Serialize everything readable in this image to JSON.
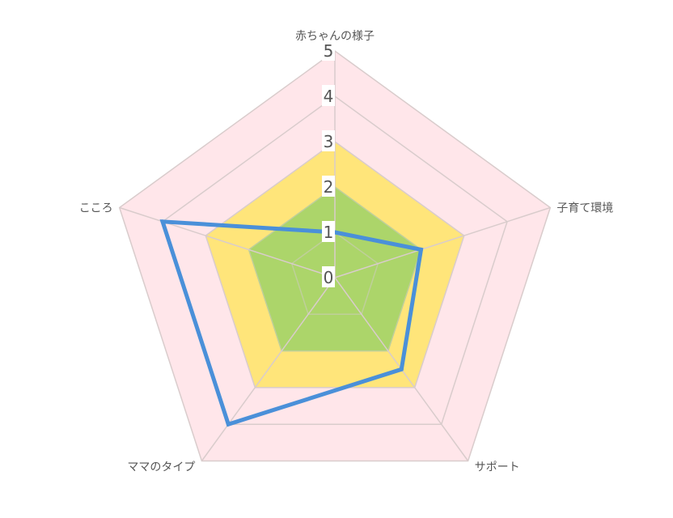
{
  "chart_data": {
    "type": "radar",
    "title": "",
    "axes": [
      "赤ちゃんの様子",
      "子育て環境",
      "サポート",
      "ママのタイプ",
      "こころ"
    ],
    "rmin": 0,
    "rmax": 5,
    "ticks": [
      0,
      1,
      2,
      3,
      4,
      5
    ],
    "grid": true,
    "bands": [
      {
        "from": 3,
        "to": 5,
        "color": "#ffe6ea"
      },
      {
        "from": 2,
        "to": 3,
        "color": "#ffe57a"
      },
      {
        "from": 0,
        "to": 2,
        "color": "#acd56a"
      }
    ],
    "series": [
      {
        "name": "",
        "values": [
          1,
          2,
          2.5,
          4,
          4
        ],
        "color": "#4a90d9"
      }
    ],
    "colors": {
      "grid": "#d9cccc",
      "inner_grid": "#bfcf9a",
      "tick_bg": "#ffffff"
    }
  }
}
